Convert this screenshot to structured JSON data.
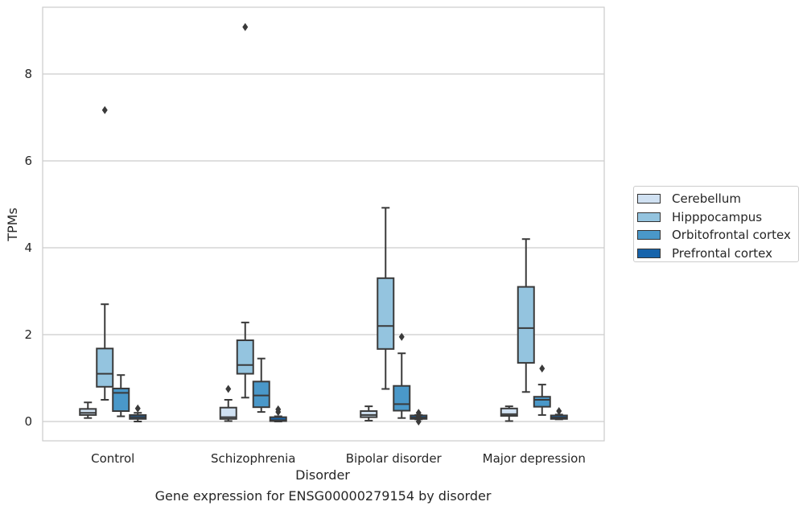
{
  "chart_data": {
    "type": "box",
    "caption": "Gene expression for ENSG00000279154 by disorder",
    "xlabel": "Disorder",
    "ylabel": "TPMs",
    "ylim": [
      -0.45,
      9.6
    ],
    "yticks": [
      0,
      2,
      4,
      6,
      8
    ],
    "grid": "horizontal",
    "legend_position": "right",
    "categories": [
      "Control",
      "Schizophrenia",
      "Bipolar disorder",
      "Major depression"
    ],
    "series": [
      {
        "name": "Cerebellum",
        "color": "#d0e1f2",
        "boxes": [
          {
            "whislo": 0.08,
            "q1": 0.15,
            "med": 0.2,
            "q3": 0.29,
            "whishi": 0.44,
            "fliers": []
          },
          {
            "whislo": 0.01,
            "q1": 0.06,
            "med": 0.1,
            "q3": 0.32,
            "whishi": 0.5,
            "fliers": [
              0.75
            ]
          },
          {
            "whislo": 0.02,
            "q1": 0.1,
            "med": 0.15,
            "q3": 0.24,
            "whishi": 0.35,
            "fliers": []
          },
          {
            "whislo": 0.01,
            "q1": 0.13,
            "med": 0.17,
            "q3": 0.3,
            "whishi": 0.35,
            "fliers": []
          }
        ]
      },
      {
        "name": "Hipppocampus",
        "color": "#94c4df",
        "boxes": [
          {
            "whislo": 0.5,
            "q1": 0.8,
            "med": 1.1,
            "q3": 1.68,
            "whishi": 2.7,
            "fliers": [
              7.17
            ]
          },
          {
            "whislo": 0.55,
            "q1": 1.1,
            "med": 1.3,
            "q3": 1.87,
            "whishi": 2.28,
            "fliers": [
              9.08
            ]
          },
          {
            "whislo": 0.75,
            "q1": 1.67,
            "med": 2.2,
            "q3": 3.3,
            "whishi": 4.92,
            "fliers": []
          },
          {
            "whislo": 0.68,
            "q1": 1.35,
            "med": 2.15,
            "q3": 3.1,
            "whishi": 4.2,
            "fliers": []
          }
        ]
      },
      {
        "name": "Orbitofrontal cortex",
        "color": "#4a98c9",
        "boxes": [
          {
            "whislo": 0.12,
            "q1": 0.24,
            "med": 0.66,
            "q3": 0.76,
            "whishi": 1.07,
            "fliers": []
          },
          {
            "whislo": 0.22,
            "q1": 0.33,
            "med": 0.6,
            "q3": 0.92,
            "whishi": 1.45,
            "fliers": []
          },
          {
            "whislo": 0.08,
            "q1": 0.25,
            "med": 0.4,
            "q3": 0.82,
            "whishi": 1.57,
            "fliers": [
              1.95
            ]
          },
          {
            "whislo": 0.15,
            "q1": 0.34,
            "med": 0.5,
            "q3": 0.57,
            "whishi": 0.85,
            "fliers": [
              1.22
            ]
          }
        ]
      },
      {
        "name": "Prefrontal cortex",
        "color": "#1764ab",
        "boxes": [
          {
            "whislo": 0.0,
            "q1": 0.06,
            "med": 0.1,
            "q3": 0.15,
            "whishi": 0.2,
            "fliers": [
              0.3
            ]
          },
          {
            "whislo": 0.0,
            "q1": 0.01,
            "med": 0.03,
            "q3": 0.1,
            "whishi": 0.12,
            "fliers": [
              0.22,
              0.28
            ]
          },
          {
            "whislo": 0.05,
            "q1": 0.06,
            "med": 0.09,
            "q3": 0.14,
            "whishi": 0.15,
            "fliers": [
              0.0,
              0.12,
              0.2
            ]
          },
          {
            "whislo": 0.05,
            "q1": 0.06,
            "med": 0.09,
            "q3": 0.14,
            "whishi": 0.16,
            "fliers": [
              0.24
            ]
          }
        ]
      }
    ]
  }
}
